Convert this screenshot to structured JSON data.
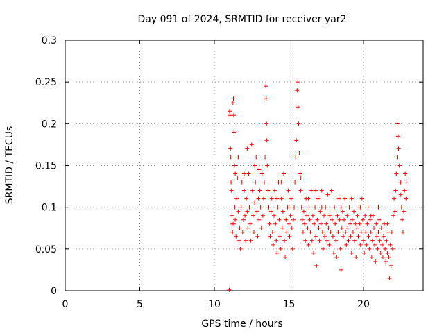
{
  "chart_data": {
    "type": "scatter",
    "title": "Day 091 of 2024, SRMTID for receiver yar2",
    "xlabel": "GPS time / hours",
    "ylabel": "SRMTID / TECUs",
    "xlim": [
      0,
      24
    ],
    "ylim": [
      0,
      0.3
    ],
    "xticks": [
      0,
      5,
      10,
      15,
      20
    ],
    "yticks": [
      0,
      0.05,
      0.1,
      0.15,
      0.2,
      0.25,
      0.3
    ],
    "xtick_labels": [
      "0",
      "5",
      "10",
      "15",
      "20"
    ],
    "ytick_labels": [
      "0",
      "0.05",
      "0.1",
      "0.15",
      "0.2",
      "0.25",
      "0.3"
    ],
    "grid": true,
    "marker": "+",
    "color": "#ff0000",
    "series": [
      {
        "name": "yar2",
        "points": [
          [
            11.0,
            0.001
          ],
          [
            11.02,
            0.215
          ],
          [
            11.05,
            0.21
          ],
          [
            11.08,
            0.17
          ],
          [
            11.1,
            0.16
          ],
          [
            11.12,
            0.13
          ],
          [
            11.15,
            0.12
          ],
          [
            11.18,
            0.09
          ],
          [
            11.2,
            0.08
          ],
          [
            11.22,
            0.07
          ],
          [
            11.25,
            0.225
          ],
          [
            11.28,
            0.23
          ],
          [
            11.3,
            0.21
          ],
          [
            11.32,
            0.19
          ],
          [
            11.35,
            0.15
          ],
          [
            11.38,
            0.1
          ],
          [
            11.4,
            0.085
          ],
          [
            11.45,
            0.065
          ],
          [
            11.5,
            0.11
          ],
          [
            11.55,
            0.135
          ],
          [
            11.6,
            0.095
          ],
          [
            11.65,
            0.06
          ],
          [
            11.7,
            0.075
          ],
          [
            11.75,
            0.05
          ],
          [
            11.8,
            0.1
          ],
          [
            11.85,
            0.13
          ],
          [
            11.9,
            0.07
          ],
          [
            11.95,
            0.085
          ],
          [
            12.0,
            0.12
          ],
          [
            12.05,
            0.09
          ],
          [
            12.1,
            0.06
          ],
          [
            12.15,
            0.11
          ],
          [
            12.2,
            0.095
          ],
          [
            12.25,
            0.075
          ],
          [
            12.3,
            0.14
          ],
          [
            12.35,
            0.1
          ],
          [
            12.4,
            0.08
          ],
          [
            12.45,
            0.06
          ],
          [
            12.5,
            0.175
          ],
          [
            12.55,
            0.12
          ],
          [
            12.6,
            0.09
          ],
          [
            12.65,
            0.07
          ],
          [
            12.7,
            0.105
          ],
          [
            12.75,
            0.13
          ],
          [
            12.8,
            0.16
          ],
          [
            12.85,
            0.095
          ],
          [
            12.9,
            0.065
          ],
          [
            12.95,
            0.11
          ],
          [
            13.0,
            0.085
          ],
          [
            13.05,
            0.12
          ],
          [
            13.1,
            0.1
          ],
          [
            13.15,
            0.075
          ],
          [
            13.2,
            0.14
          ],
          [
            13.25,
            0.09
          ],
          [
            13.3,
            0.11
          ],
          [
            13.35,
            0.13
          ],
          [
            13.4,
            0.16
          ],
          [
            13.45,
            0.245
          ],
          [
            13.48,
            0.23
          ],
          [
            13.5,
            0.2
          ],
          [
            13.52,
            0.18
          ],
          [
            13.55,
            0.15
          ],
          [
            13.6,
            0.12
          ],
          [
            13.65,
            0.1
          ],
          [
            13.7,
            0.08
          ],
          [
            13.75,
            0.065
          ],
          [
            13.8,
            0.095
          ],
          [
            13.85,
            0.11
          ],
          [
            13.9,
            0.07
          ],
          [
            13.95,
            0.055
          ],
          [
            14.0,
            0.09
          ],
          [
            14.05,
            0.12
          ],
          [
            14.1,
            0.08
          ],
          [
            14.15,
            0.06
          ],
          [
            14.2,
            0.045
          ],
          [
            14.25,
            0.1
          ],
          [
            14.3,
            0.13
          ],
          [
            14.35,
            0.085
          ],
          [
            14.4,
            0.065
          ],
          [
            14.45,
            0.05
          ],
          [
            14.5,
            0.11
          ],
          [
            14.55,
            0.075
          ],
          [
            14.6,
            0.095
          ],
          [
            14.65,
            0.14
          ],
          [
            14.7,
            0.06
          ],
          [
            14.75,
            0.04
          ],
          [
            14.8,
            0.085
          ],
          [
            14.85,
            0.07
          ],
          [
            14.9,
            0.1
          ],
          [
            14.95,
            0.12
          ],
          [
            15.0,
            0.08
          ],
          [
            15.05,
            0.065
          ],
          [
            15.1,
            0.09
          ],
          [
            15.15,
            0.11
          ],
          [
            15.2,
            0.075
          ],
          [
            15.25,
            0.05
          ],
          [
            15.3,
            0.085
          ],
          [
            15.35,
            0.1
          ],
          [
            15.4,
            0.13
          ],
          [
            15.45,
            0.16
          ],
          [
            15.5,
            0.18
          ],
          [
            15.55,
            0.24
          ],
          [
            15.6,
            0.25
          ],
          [
            15.62,
            0.22
          ],
          [
            15.65,
            0.2
          ],
          [
            15.7,
            0.165
          ],
          [
            15.75,
            0.14
          ],
          [
            15.8,
            0.12
          ],
          [
            15.85,
            0.1
          ],
          [
            15.9,
            0.085
          ],
          [
            15.95,
            0.07
          ],
          [
            16.0,
            0.095
          ],
          [
            16.05,
            0.08
          ],
          [
            16.1,
            0.06
          ],
          [
            16.15,
            0.11
          ],
          [
            16.2,
            0.09
          ],
          [
            16.25,
            0.075
          ],
          [
            16.3,
            0.055
          ],
          [
            16.35,
            0.1
          ],
          [
            16.4,
            0.085
          ],
          [
            16.45,
            0.07
          ],
          [
            16.5,
            0.12
          ],
          [
            16.55,
            0.06
          ],
          [
            16.6,
            0.09
          ],
          [
            16.65,
            0.045
          ],
          [
            16.7,
            0.08
          ],
          [
            16.75,
            0.1
          ],
          [
            16.8,
            0.065
          ],
          [
            16.85,
            0.03
          ],
          [
            16.9,
            0.085
          ],
          [
            16.95,
            0.11
          ],
          [
            17.0,
            0.075
          ],
          [
            17.05,
            0.06
          ],
          [
            17.1,
            0.095
          ],
          [
            17.15,
            0.08
          ],
          [
            17.2,
            0.12
          ],
          [
            17.25,
            0.07
          ],
          [
            17.3,
            0.05
          ],
          [
            17.35,
            0.09
          ],
          [
            17.4,
            0.065
          ],
          [
            17.45,
            0.1
          ],
          [
            17.5,
            0.08
          ],
          [
            17.55,
            0.06
          ],
          [
            17.6,
            0.115
          ],
          [
            17.65,
            0.075
          ],
          [
            17.7,
            0.055
          ],
          [
            17.75,
            0.09
          ],
          [
            17.8,
            0.07
          ],
          [
            17.85,
            0.12
          ],
          [
            17.9,
            0.085
          ],
          [
            17.95,
            0.065
          ],
          [
            18.0,
            0.045
          ],
          [
            18.05,
            0.1
          ],
          [
            18.1,
            0.08
          ],
          [
            18.15,
            0.06
          ],
          [
            18.2,
            0.04
          ],
          [
            18.25,
            0.09
          ],
          [
            18.3,
            0.07
          ],
          [
            18.35,
            0.11
          ],
          [
            18.4,
            0.085
          ],
          [
            18.45,
            0.05
          ],
          [
            18.5,
            0.025
          ],
          [
            18.55,
            0.075
          ],
          [
            18.6,
            0.095
          ],
          [
            18.65,
            0.065
          ],
          [
            18.7,
            0.085
          ],
          [
            18.75,
            0.11
          ],
          [
            18.8,
            0.07
          ],
          [
            18.85,
            0.055
          ],
          [
            18.9,
            0.09
          ],
          [
            18.95,
            0.075
          ],
          [
            19.0,
            0.06
          ],
          [
            19.05,
            0.1
          ],
          [
            19.1,
            0.08
          ],
          [
            19.15,
            0.065
          ],
          [
            19.2,
            0.045
          ],
          [
            19.25,
            0.085
          ],
          [
            19.3,
            0.07
          ],
          [
            19.35,
            0.095
          ],
          [
            19.4,
            0.06
          ],
          [
            19.45,
            0.08
          ],
          [
            19.5,
            0.04
          ],
          [
            19.55,
            0.075
          ],
          [
            19.6,
            0.09
          ],
          [
            19.65,
            0.065
          ],
          [
            19.7,
            0.1
          ],
          [
            19.75,
            0.08
          ],
          [
            19.8,
            0.055
          ],
          [
            19.85,
            0.07
          ],
          [
            19.9,
            0.11
          ],
          [
            19.95,
            0.085
          ],
          [
            20.0,
            0.06
          ],
          [
            20.05,
            0.045
          ],
          [
            20.1,
            0.09
          ],
          [
            20.15,
            0.07
          ],
          [
            20.2,
            0.055
          ],
          [
            20.25,
            0.08
          ],
          [
            20.3,
            0.1
          ],
          [
            20.35,
            0.065
          ],
          [
            20.4,
            0.05
          ],
          [
            20.45,
            0.085
          ],
          [
            20.5,
            0.07
          ],
          [
            20.55,
            0.04
          ],
          [
            20.6,
            0.06
          ],
          [
            20.65,
            0.09
          ],
          [
            20.7,
            0.075
          ],
          [
            20.75,
            0.055
          ],
          [
            20.8,
            0.035
          ],
          [
            20.85,
            0.08
          ],
          [
            20.9,
            0.065
          ],
          [
            20.95,
            0.05
          ],
          [
            21.0,
            0.07
          ],
          [
            21.05,
            0.085
          ],
          [
            21.1,
            0.06
          ],
          [
            21.15,
            0.045
          ],
          [
            21.2,
            0.075
          ],
          [
            21.25,
            0.055
          ],
          [
            21.3,
            0.04
          ],
          [
            21.35,
            0.065
          ],
          [
            21.4,
            0.08
          ],
          [
            21.45,
            0.05
          ],
          [
            21.5,
            0.035
          ],
          [
            21.55,
            0.06
          ],
          [
            21.6,
            0.045
          ],
          [
            21.65,
            0.07
          ],
          [
            21.7,
            0.04
          ],
          [
            21.75,
            0.015
          ],
          [
            21.8,
            0.055
          ],
          [
            21.85,
            0.03
          ],
          [
            21.9,
            0.07
          ],
          [
            21.95,
            0.05
          ],
          [
            22.0,
            0.09
          ],
          [
            22.05,
            0.11
          ],
          [
            22.1,
            0.095
          ],
          [
            22.15,
            0.12
          ],
          [
            22.2,
            0.14
          ],
          [
            22.25,
            0.16
          ],
          [
            22.3,
            0.2
          ],
          [
            22.32,
            0.185
          ],
          [
            22.35,
            0.17
          ],
          [
            22.4,
            0.15
          ],
          [
            22.45,
            0.13
          ],
          [
            22.5,
            0.115
          ],
          [
            22.55,
            0.1
          ],
          [
            22.6,
            0.085
          ],
          [
            22.65,
            0.07
          ],
          [
            22.7,
            0.095
          ],
          [
            22.75,
            0.12
          ],
          [
            22.8,
            0.14
          ],
          [
            22.85,
            0.11
          ],
          [
            22.9,
            0.13
          ],
          [
            11.4,
            0.14
          ],
          [
            11.6,
            0.16
          ],
          [
            12.2,
            0.17
          ],
          [
            12.0,
            0.14
          ],
          [
            13.0,
            0.145
          ],
          [
            14.5,
            0.13
          ],
          [
            15.0,
            0.1
          ],
          [
            15.8,
            0.135
          ],
          [
            16.3,
            0.11
          ],
          [
            17.2,
            0.1
          ],
          [
            18.5,
            0.1
          ],
          [
            19.8,
            0.1
          ],
          [
            20.5,
            0.09
          ],
          [
            21.0,
            0.1
          ],
          [
            21.6,
            0.08
          ],
          [
            22.5,
            0.13
          ],
          [
            11.3,
            0.08
          ],
          [
            12.7,
            0.15
          ],
          [
            14.2,
            0.11
          ],
          [
            16.8,
            0.12
          ],
          [
            19.2,
            0.11
          ]
        ]
      }
    ]
  }
}
